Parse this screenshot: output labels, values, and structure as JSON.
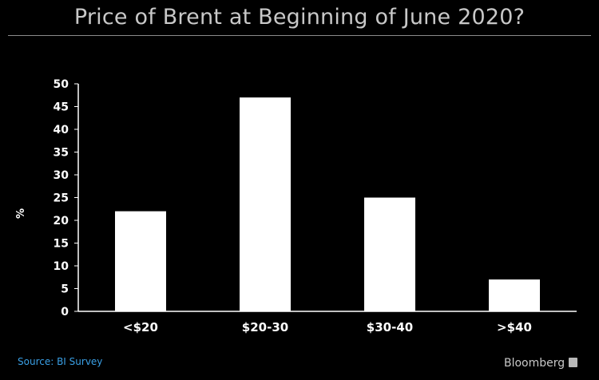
{
  "colors": {
    "background": "#000000",
    "bar": "#ffffff",
    "axis": "#ffffff",
    "title_text": "#c8c8c8",
    "source_text": "#3aa0e6",
    "brand_text": "#c8c8c8"
  },
  "chart_data": {
    "type": "bar",
    "title": "Price of Brent at Beginning of June 2020?",
    "xlabel": "",
    "ylabel": "%",
    "categories": [
      "<$20",
      "$20-30",
      "$30-40",
      ">$40"
    ],
    "values": [
      22,
      47,
      25,
      7
    ],
    "ylim": [
      0,
      50
    ],
    "yticks": [
      0,
      5,
      10,
      15,
      20,
      25,
      30,
      35,
      40,
      45,
      50
    ],
    "ytick_labels": [
      "0",
      "5",
      "10",
      "15",
      "20",
      "25",
      "30",
      "35",
      "40",
      "45",
      "50"
    ],
    "grid": false,
    "legend": "none"
  },
  "footer": {
    "source": "Source: BI Survey",
    "brand": "Bloomberg"
  }
}
